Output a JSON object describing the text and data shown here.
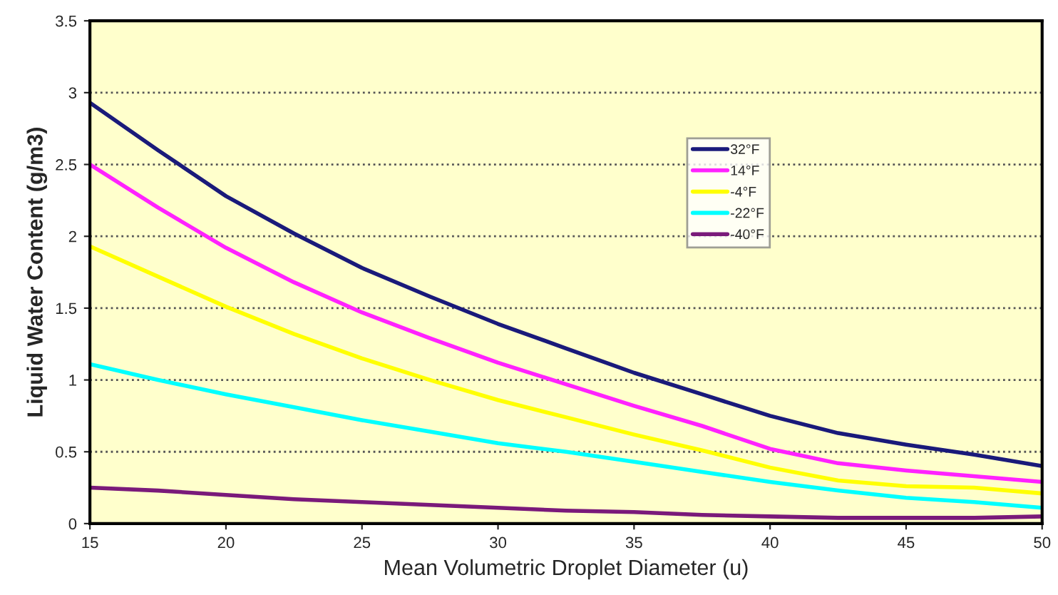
{
  "chart_data": {
    "type": "line",
    "xlabel": "Mean Volumetric Droplet Diameter (u)",
    "ylabel": "Liquid Water Content (g/m3)",
    "x": [
      15,
      17.5,
      20,
      22.5,
      25,
      27.5,
      30,
      32.5,
      35,
      37.5,
      40,
      42.5,
      45,
      47.5,
      50
    ],
    "series": [
      {
        "name": "32°F",
        "color": "#1a1a7a",
        "values": [
          2.93,
          2.6,
          2.28,
          2.02,
          1.78,
          1.58,
          1.39,
          1.22,
          1.05,
          0.9,
          0.75,
          0.63,
          0.55,
          0.48,
          0.4
        ]
      },
      {
        "name": "14°F",
        "color": "#ff22ff",
        "values": [
          2.5,
          2.2,
          1.92,
          1.68,
          1.47,
          1.29,
          1.12,
          0.97,
          0.82,
          0.68,
          0.52,
          0.42,
          0.37,
          0.33,
          0.29
        ]
      },
      {
        "name": "-4°F",
        "color": "#ffff00",
        "values": [
          1.93,
          1.72,
          1.51,
          1.32,
          1.15,
          1.0,
          0.86,
          0.74,
          0.62,
          0.51,
          0.39,
          0.3,
          0.26,
          0.25,
          0.21
        ]
      },
      {
        "name": "-22°F",
        "color": "#00ffff",
        "values": [
          1.11,
          1.0,
          0.9,
          0.81,
          0.72,
          0.64,
          0.56,
          0.5,
          0.43,
          0.36,
          0.29,
          0.23,
          0.18,
          0.15,
          0.11
        ]
      },
      {
        "name": "-40°F",
        "color": "#7a1a7a",
        "values": [
          0.25,
          0.23,
          0.2,
          0.17,
          0.15,
          0.13,
          0.11,
          0.09,
          0.08,
          0.06,
          0.05,
          0.04,
          0.04,
          0.04,
          0.05
        ]
      }
    ],
    "xlim": [
      15,
      50
    ],
    "ylim": [
      0,
      3.5
    ],
    "xticks": [
      15,
      20,
      25,
      30,
      35,
      40,
      45,
      50
    ],
    "yticks": [
      0,
      0.5,
      1,
      1.5,
      2,
      2.5,
      3,
      3.5
    ],
    "grid": "y",
    "legend": "top right",
    "marker": "none",
    "line_style": "solid"
  }
}
